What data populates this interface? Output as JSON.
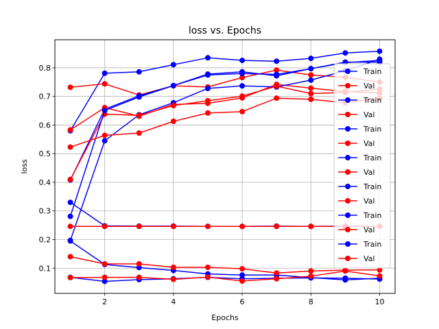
{
  "chart_data": {
    "type": "line",
    "title": "loss vs. Epochs",
    "xlabel": "Epochs",
    "ylabel": "loss",
    "xlim": [
      0.55,
      10.45
    ],
    "ylim": [
      0.012,
      0.898
    ],
    "xticks": [
      2,
      4,
      6,
      8,
      10
    ],
    "yticks": [
      0.1,
      0.2,
      0.3,
      0.4,
      0.5,
      0.6,
      0.7,
      0.8
    ],
    "grid": true,
    "legend_position": "right",
    "x": [
      1,
      2,
      3,
      4,
      5,
      6,
      7,
      8,
      9,
      10
    ],
    "colors": {
      "Train": "#0000ff",
      "Val": "#ff0000"
    },
    "series": [
      {
        "name": "Train",
        "values": [
          0.58,
          0.781,
          0.786,
          0.811,
          0.835,
          0.826,
          0.823,
          0.833,
          0.852,
          0.858
        ]
      },
      {
        "name": "Val",
        "values": [
          0.732,
          0.744,
          0.705,
          0.737,
          0.733,
          0.766,
          0.792,
          0.775,
          0.767,
          0.75
        ]
      },
      {
        "name": "Train",
        "values": [
          0.408,
          0.655,
          0.702,
          0.738,
          0.778,
          0.786,
          0.772,
          0.797,
          0.818,
          0.826
        ]
      },
      {
        "name": "Val",
        "values": [
          0.583,
          0.661,
          0.631,
          0.672,
          0.676,
          0.695,
          0.742,
          0.729,
          0.717,
          0.712
        ]
      },
      {
        "name": "Train",
        "values": [
          0.197,
          0.545,
          0.636,
          0.678,
          0.728,
          0.737,
          0.733,
          0.757,
          0.79,
          0.83
        ]
      },
      {
        "name": "Val",
        "values": [
          0.41,
          0.638,
          0.634,
          0.668,
          0.685,
          0.701,
          0.736,
          0.71,
          0.714,
          0.726
        ]
      },
      {
        "name": "Train",
        "values": [
          0.281,
          0.651,
          0.698,
          0.738,
          0.775,
          0.78,
          0.777,
          0.797,
          0.82,
          0.82
        ]
      },
      {
        "name": "Val",
        "values": [
          0.523,
          0.564,
          0.572,
          0.613,
          0.642,
          0.647,
          0.694,
          0.69,
          0.678,
          0.693
        ]
      },
      {
        "name": "Train",
        "values": [
          0.33,
          0.248,
          0.247,
          0.247,
          0.246,
          0.246,
          0.247,
          0.246,
          0.247,
          0.246
        ]
      },
      {
        "name": "Val",
        "values": [
          0.246,
          0.246,
          0.246,
          0.246,
          0.246,
          0.246,
          0.246,
          0.246,
          0.246,
          0.246
        ]
      },
      {
        "name": "Train",
        "values": [
          0.195,
          0.113,
          0.102,
          0.092,
          0.08,
          0.076,
          0.076,
          0.067,
          0.059,
          0.065
        ]
      },
      {
        "name": "Val",
        "values": [
          0.14,
          0.115,
          0.115,
          0.103,
          0.103,
          0.098,
          0.083,
          0.09,
          0.093,
          0.094
        ]
      },
      {
        "name": "Train",
        "values": [
          0.068,
          0.054,
          0.06,
          0.063,
          0.068,
          0.063,
          0.065,
          0.066,
          0.065,
          0.062
        ]
      },
      {
        "name": "Val",
        "values": [
          0.067,
          0.068,
          0.068,
          0.061,
          0.069,
          0.055,
          0.063,
          0.072,
          0.09,
          0.073
        ]
      }
    ]
  }
}
